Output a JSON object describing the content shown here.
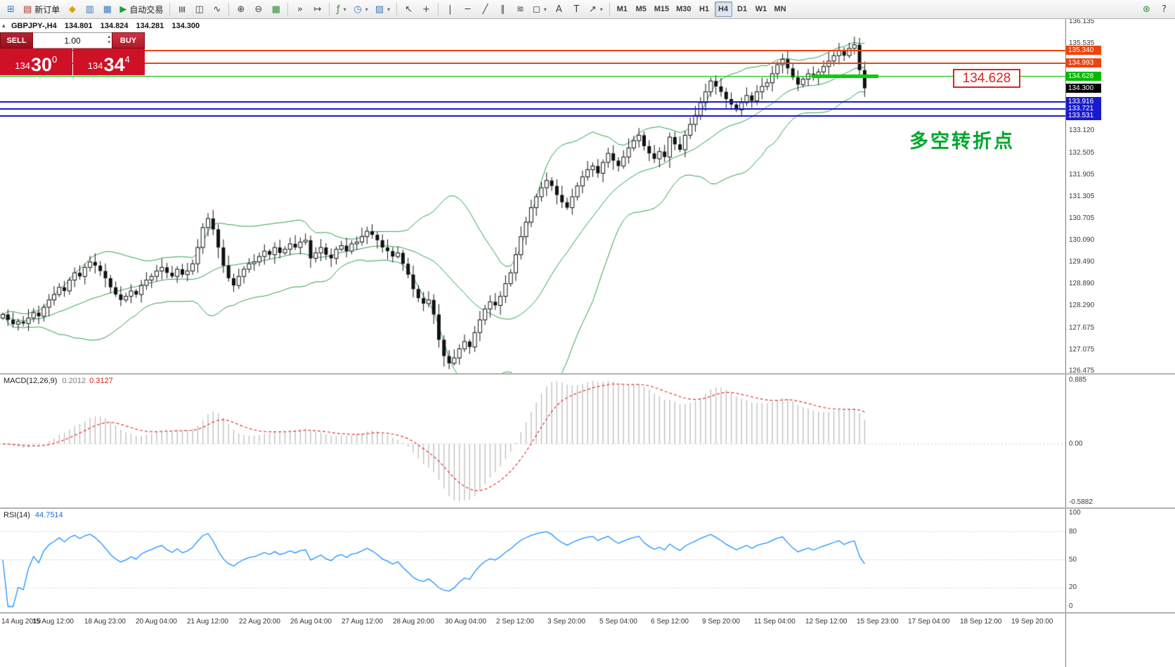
{
  "colors": {
    "candle_up": "#ffffff",
    "candle_down": "#111111",
    "candle_outline": "#111111",
    "bollinger": "#2da050",
    "macd_histogram": "#c0c0c0",
    "macd_signal": "#dd3333",
    "rsi_line": "#1e90ff",
    "rsi_levels": "#b8b8b8",
    "axis_text": "#3c3c3c"
  },
  "toolbar": {
    "groups": [
      {
        "items": [
          {
            "name": "new-chart-button",
            "glyph": "⊞",
            "color": "#3a7abf"
          },
          {
            "name": "new-order-button",
            "glyph": "▤",
            "color": "#b03030",
            "label": "新订单"
          },
          {
            "name": "metaeditor-button",
            "glyph": "◆",
            "color": "#d9a400"
          },
          {
            "name": "market-watch-button",
            "glyph": "▥",
            "color": "#3a7abf"
          },
          {
            "name": "data-window-button",
            "glyph": "▦",
            "color": "#3a7abf"
          },
          {
            "name": "autotrading-button",
            "glyph": "▶",
            "color": "#18a335",
            "label": "自动交易"
          }
        ]
      },
      {
        "items": [
          {
            "name": "bar-chart-button",
            "glyph": "≣",
            "rot": true
          },
          {
            "name": "candlestick-chart-button",
            "glyph": "◫"
          },
          {
            "name": "line-chart-button",
            "glyph": "∿"
          }
        ]
      },
      {
        "items": [
          {
            "name": "zoom-in-button",
            "glyph": "⊕"
          },
          {
            "name": "zoom-out-button",
            "glyph": "⊖"
          },
          {
            "name": "tile-windows-button",
            "glyph": "▦",
            "color": "#2d8f2d"
          }
        ]
      },
      {
        "items": [
          {
            "name": "auto-scroll-button",
            "glyph": "»"
          },
          {
            "name": "chart-shift-button",
            "glyph": "↦"
          }
        ]
      },
      {
        "items": [
          {
            "name": "indicators-button",
            "glyph": "ƒ",
            "color": "#2d8f2d",
            "caret": true
          },
          {
            "name": "periods-button",
            "glyph": "◷",
            "color": "#3a7abf",
            "caret": true
          },
          {
            "name": "templates-button",
            "glyph": "▨",
            "color": "#3a7abf",
            "caret": true
          }
        ]
      },
      {
        "items": [
          {
            "name": "cursor-button",
            "glyph": "↖"
          },
          {
            "name": "crosshair-button",
            "glyph": "+"
          }
        ]
      },
      {
        "items": [
          {
            "name": "vertical-line-button",
            "glyph": "|"
          },
          {
            "name": "horizontal-line-button",
            "glyph": "─"
          },
          {
            "name": "trendline-button",
            "glyph": "╱"
          },
          {
            "name": "channel-button",
            "glyph": "∥"
          },
          {
            "name": "fibonacci-button",
            "glyph": "≋"
          },
          {
            "name": "shapes-button",
            "glyph": "◻",
            "caret": true
          },
          {
            "name": "text-button",
            "glyph": "A"
          },
          {
            "name": "label-button",
            "glyph": "T"
          },
          {
            "name": "arrows-button",
            "glyph": "↗",
            "caret": true
          }
        ]
      }
    ],
    "timeframes": {
      "items": [
        "M1",
        "M5",
        "M15",
        "M30",
        "H1",
        "H4",
        "D1",
        "W1",
        "MN"
      ],
      "active": "H4"
    },
    "right_items": [
      {
        "name": "search-button",
        "glyph": "⊛",
        "color": "#2d8f2d"
      },
      {
        "name": "context-help-button",
        "glyph": "?",
        "color": "#444444"
      }
    ]
  },
  "symbol_info": {
    "symbol": "GBPJPY-,H4",
    "open": "134.801",
    "high": "134.824",
    "low": "134.281",
    "close": "134.300"
  },
  "trade_panel": {
    "sell_label": "SELL",
    "buy_label": "BUY",
    "volume": "1.00",
    "bid_small": "134",
    "bid_big": "30",
    "bid_sup": "0",
    "ask_small": "134",
    "ask_big": "34",
    "ask_sup": "4"
  },
  "indicators": {
    "macd": {
      "name": "MACD(12,26,9)",
      "value_main": "0.2012",
      "value_signal": "0.3127",
      "axis_labels": [
        "0.885",
        "0.00",
        "-0.5882"
      ]
    },
    "rsi": {
      "name": "RSI(14)",
      "value": "44.7514",
      "axis_labels": [
        "100",
        "80",
        "50",
        "20",
        "0"
      ],
      "levels": [
        80,
        50,
        20
      ]
    }
  },
  "annotation": {
    "text": "多空转折点",
    "color": "#00a72f"
  },
  "price_label": {
    "text": "134.628",
    "color": "#e02222"
  },
  "current_price": {
    "label": "134.300",
    "color": "#000000"
  },
  "levels": [
    {
      "price": 135.34,
      "label": "135.340",
      "color": "#ee4411",
      "thickness": 2
    },
    {
      "price": 134.993,
      "label": "134.993",
      "color": "#ee4411",
      "thickness": 2
    },
    {
      "price": 134.628,
      "label": "134.628",
      "color": "#00bb00",
      "thickness": 1
    },
    {
      "price": 133.916,
      "label": "133.916",
      "color": "#1a1acd",
      "thickness": 2
    },
    {
      "price": 133.721,
      "label": "133.721",
      "color": "#1a1acd",
      "thickness": 2
    },
    {
      "price": 133.531,
      "label": "133.531",
      "color": "#1a1acd",
      "thickness": 2
    }
  ],
  "price_axis": {
    "ticks": [
      "136.135",
      "135.535",
      "134.935",
      "134.335",
      "133.735",
      "133.120",
      "132.505",
      "131.905",
      "131.305",
      "130.705",
      "130.090",
      "129.490",
      "128.890",
      "128.290",
      "127.675",
      "127.075",
      "126.475"
    ]
  },
  "time_axis": {
    "ticks": [
      "14 Aug 2019",
      "15 Aug 12:00",
      "18 Aug 23:00",
      "20 Aug 04:00",
      "21 Aug 12:00",
      "22 Aug 20:00",
      "26 Aug 04:00",
      "27 Aug 12:00",
      "28 Aug 20:00",
      "30 Aug 04:00",
      "2 Sep 12:00",
      "3 Sep 20:00",
      "5 Sep 04:00",
      "6 Sep 12:00",
      "9 Sep 20:00",
      "11 Sep 04:00",
      "12 Sep 12:00",
      "15 Sep 23:00",
      "17 Sep 04:00",
      "18 Sep 12:00",
      "19 Sep 20:00"
    ]
  },
  "chart_data": {
    "type": "candlestick",
    "symbol": "GBPJPY-",
    "timeframe": "H4",
    "title": "GBPJPY-,H4",
    "ohlc_current": {
      "open": 134.801,
      "high": 134.824,
      "low": 134.281,
      "close": 134.3
    },
    "ylim": [
      126.378,
      136.193
    ],
    "grid": false,
    "closes": [
      128.05,
      127.9,
      127.78,
      127.85,
      127.8,
      127.95,
      128.1,
      128.0,
      128.25,
      128.45,
      128.6,
      128.8,
      128.7,
      129.0,
      129.2,
      129.1,
      129.35,
      129.5,
      129.4,
      129.25,
      129.05,
      128.8,
      128.6,
      128.45,
      128.55,
      128.7,
      128.6,
      128.85,
      129.0,
      129.1,
      129.25,
      129.35,
      129.2,
      129.1,
      129.3,
      129.15,
      129.25,
      129.45,
      129.9,
      130.45,
      130.7,
      130.4,
      129.9,
      129.4,
      129.05,
      128.85,
      129.1,
      129.3,
      129.45,
      129.5,
      129.65,
      129.8,
      129.7,
      129.9,
      129.75,
      129.85,
      130.0,
      129.9,
      130.05,
      130.1,
      129.6,
      129.75,
      129.9,
      129.7,
      129.6,
      129.85,
      129.95,
      129.8,
      130.0,
      130.05,
      130.2,
      130.35,
      130.25,
      130.1,
      129.9,
      129.8,
      129.65,
      129.75,
      129.45,
      129.15,
      128.75,
      128.5,
      128.35,
      128.45,
      128.05,
      127.35,
      126.9,
      126.7,
      126.85,
      127.1,
      127.3,
      127.15,
      127.55,
      127.9,
      128.2,
      128.4,
      128.3,
      128.55,
      128.9,
      129.2,
      129.7,
      130.2,
      130.6,
      131.0,
      131.3,
      131.55,
      131.75,
      131.6,
      131.35,
      131.15,
      131.0,
      131.3,
      131.6,
      131.85,
      132.05,
      132.15,
      131.95,
      132.25,
      132.5,
      132.3,
      132.15,
      132.4,
      132.65,
      132.85,
      133.0,
      132.7,
      132.5,
      132.35,
      132.55,
      132.4,
      132.95,
      132.75,
      132.6,
      133.0,
      133.3,
      133.55,
      133.9,
      134.2,
      134.5,
      134.35,
      134.2,
      134.0,
      133.85,
      133.7,
      133.9,
      134.1,
      133.95,
      134.2,
      134.35,
      134.45,
      134.7,
      134.95,
      135.1,
      134.85,
      134.6,
      134.4,
      134.55,
      134.7,
      134.6,
      134.75,
      134.9,
      135.05,
      135.2,
      135.35,
      135.2,
      135.4,
      135.5,
      134.8,
      134.3
    ],
    "indicators": {
      "bollinger": {
        "period": 20,
        "deviation": 2
      },
      "macd": {
        "fast": 12,
        "slow": 26,
        "signal": 9
      },
      "rsi": {
        "period": 14
      }
    },
    "support_zone": {
      "price": 134.628,
      "from_bar": 158,
      "to_bar": 171,
      "color": "#00d000"
    }
  }
}
